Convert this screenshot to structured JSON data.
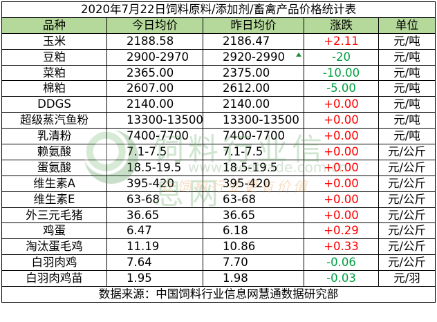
{
  "title": "2020年7月22日饲料原料/添加剂/畜禽产品价格统计表",
  "header": {
    "name": "品种",
    "today": "今日均价",
    "yesterday": "昨日均价",
    "change": "涨跌",
    "unit": "单位"
  },
  "rows": [
    {
      "name": "玉米",
      "today": "2188.58",
      "yesterday": "2186.47",
      "change": "+2.11",
      "dir": "up",
      "unit": "元/吨"
    },
    {
      "name": "豆粕",
      "today": "2900-2970",
      "yesterday": "2920-2990",
      "change": "-20",
      "dir": "down",
      "unit": "元/吨"
    },
    {
      "name": "菜粕",
      "today": "2365.00",
      "yesterday": "2375.00",
      "change": "-10.00",
      "dir": "down",
      "unit": "元/吨"
    },
    {
      "name": "棉粕",
      "today": "2607.00",
      "yesterday": "2612.00",
      "change": "-5.00",
      "dir": "down",
      "unit": "元/吨"
    },
    {
      "name": "DDGS",
      "today": "2140.00",
      "yesterday": "2140.00",
      "change": "+0.00",
      "dir": "up",
      "unit": "元/吨"
    },
    {
      "name": "超级蒸汽鱼粉",
      "today": "13300-13500",
      "yesterday": "13300-13500",
      "change": "+0.00",
      "dir": "up",
      "unit": "元/吨"
    },
    {
      "name": "乳清粉",
      "today": "7400-7700",
      "yesterday": "7400-7700",
      "change": "+0.00",
      "dir": "up",
      "unit": "元/吨"
    },
    {
      "name": "赖氨酸",
      "today": "7.1-7.5",
      "yesterday": "7.1-7.5",
      "change": "+0.00",
      "dir": "up",
      "unit": "元/公斤"
    },
    {
      "name": "蛋氨酸",
      "today": "18.5-19.5",
      "yesterday": "18.5-19.5",
      "change": "+0.00",
      "dir": "up",
      "unit": "元/公斤"
    },
    {
      "name": "维生素A",
      "today": "395-420",
      "yesterday": "395-420",
      "change": "+0.00",
      "dir": "up",
      "unit": "元/公斤"
    },
    {
      "name": "维生素E",
      "today": "63-68",
      "yesterday": "63-68",
      "change": "+0.00",
      "dir": "up",
      "unit": "元/公斤"
    },
    {
      "name": "外三元毛猪",
      "today": "36.65",
      "yesterday": "36.65",
      "change": "+0.00",
      "dir": "up",
      "unit": "元/公斤"
    },
    {
      "name": "鸡蛋",
      "today": "6.47",
      "yesterday": "6.18",
      "change": "+0.29",
      "dir": "up",
      "unit": "元/公斤"
    },
    {
      "name": "淘汰蛋毛鸡",
      "today": "11.19",
      "yesterday": "10.86",
      "change": "+0.33",
      "dir": "up",
      "unit": "元/公斤"
    },
    {
      "name": "白羽肉鸡",
      "today": "7.64",
      "yesterday": "7.70",
      "change": "-0.06",
      "dir": "down",
      "unit": "元/公斤"
    },
    {
      "name": "白羽肉鸡苗",
      "today": "1.95",
      "yesterday": "1.98",
      "change": "-0.03",
      "dir": "down",
      "unit": "元/羽"
    }
  ],
  "source": "数据来源：中国饲料行业信息网慧通数据研究部",
  "watermark": {
    "text": "饲料行业信息网",
    "url": "www.feedtrade.com.cn",
    "slogan": "让饲料行业更有价值"
  },
  "colors": {
    "header_bg": "#b4d99a",
    "up": "#ff0000",
    "down": "#00a040"
  }
}
